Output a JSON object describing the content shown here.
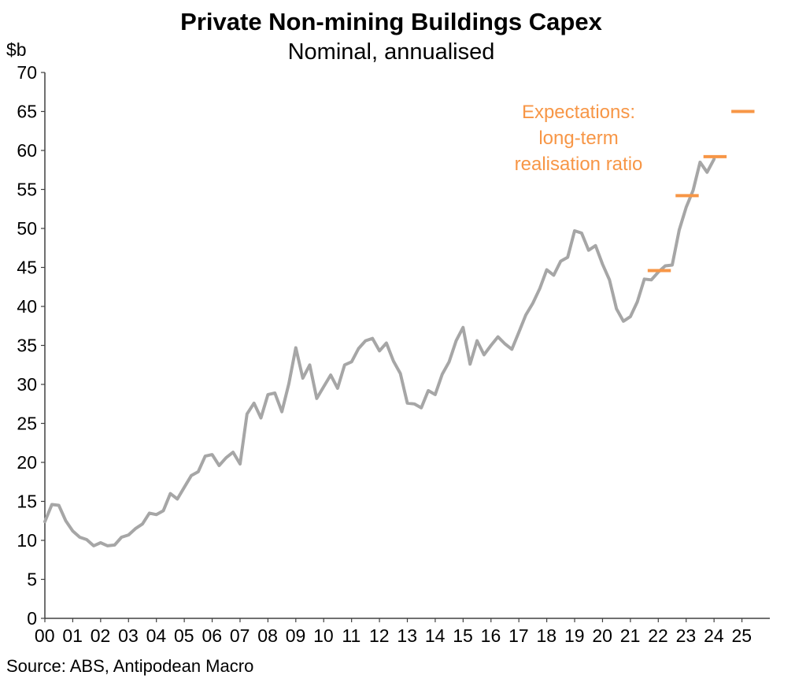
{
  "chart_data": {
    "type": "line",
    "title": "Private Non-mining Buildings Capex",
    "subtitle": "Nominal, annualised",
    "ylabel": "$b",
    "xlabel": "",
    "ylim": [
      0,
      70
    ],
    "yticks": [
      "0",
      "5",
      "10",
      "15",
      "20",
      "25",
      "30",
      "35",
      "40",
      "45",
      "50",
      "55",
      "60",
      "65",
      "70"
    ],
    "xticks": [
      "00",
      "01",
      "02",
      "03",
      "04",
      "05",
      "06",
      "07",
      "08",
      "09",
      "10",
      "11",
      "12",
      "13",
      "14",
      "15",
      "16",
      "17",
      "18",
      "19",
      "20",
      "21",
      "22",
      "23",
      "24",
      "25"
    ],
    "grid": false,
    "series": [
      {
        "name": "Actual",
        "color": "#a6a6a6",
        "x_start_year": 2000,
        "step": 0.25,
        "values": [
          12.4,
          14.6,
          14.5,
          12.5,
          11.2,
          10.4,
          10.1,
          9.3,
          9.7,
          9.3,
          9.4,
          10.4,
          10.7,
          11.5,
          12.1,
          13.5,
          13.3,
          13.8,
          16.0,
          15.3,
          16.8,
          18.3,
          18.8,
          20.8,
          21.0,
          19.6,
          20.6,
          21.3,
          19.8,
          26.2,
          27.6,
          25.7,
          28.7,
          28.9,
          26.5,
          30.1,
          34.7,
          30.8,
          32.5,
          28.2,
          29.7,
          31.2,
          29.5,
          32.5,
          32.9,
          34.6,
          35.6,
          35.9,
          34.3,
          35.3,
          33.0,
          31.4,
          27.6,
          27.5,
          27.0,
          29.2,
          28.7,
          31.3,
          32.9,
          35.6,
          37.3,
          32.6,
          35.6,
          33.8,
          35.0,
          36.1,
          35.2,
          34.5,
          36.7,
          38.9,
          40.4,
          42.3,
          44.7,
          44.0,
          45.8,
          46.3,
          49.7,
          49.4,
          47.2,
          47.8,
          45.4,
          43.4,
          39.7,
          38.1,
          38.7,
          40.6,
          43.5,
          43.4,
          44.4,
          45.2,
          45.3,
          49.8,
          52.7,
          54.9,
          58.5,
          57.2,
          58.9
        ]
      }
    ],
    "expectations": {
      "name": "Expectations: long-term realisation ratio",
      "color": "#f79646",
      "segments": [
        {
          "x0": 2021.62,
          "x1": 2022.45,
          "value": 44.6
        },
        {
          "x0": 2022.62,
          "x1": 2023.45,
          "value": 54.2
        },
        {
          "x0": 2023.62,
          "x1": 2024.45,
          "value": 59.2
        },
        {
          "x0": 2024.62,
          "x1": 2025.45,
          "value": 65.0
        }
      ]
    },
    "annotation_lines": [
      "Expectations:",
      "long-term",
      "realisation ratio"
    ],
    "source": "Source: ABS, Antipodean Macro"
  }
}
